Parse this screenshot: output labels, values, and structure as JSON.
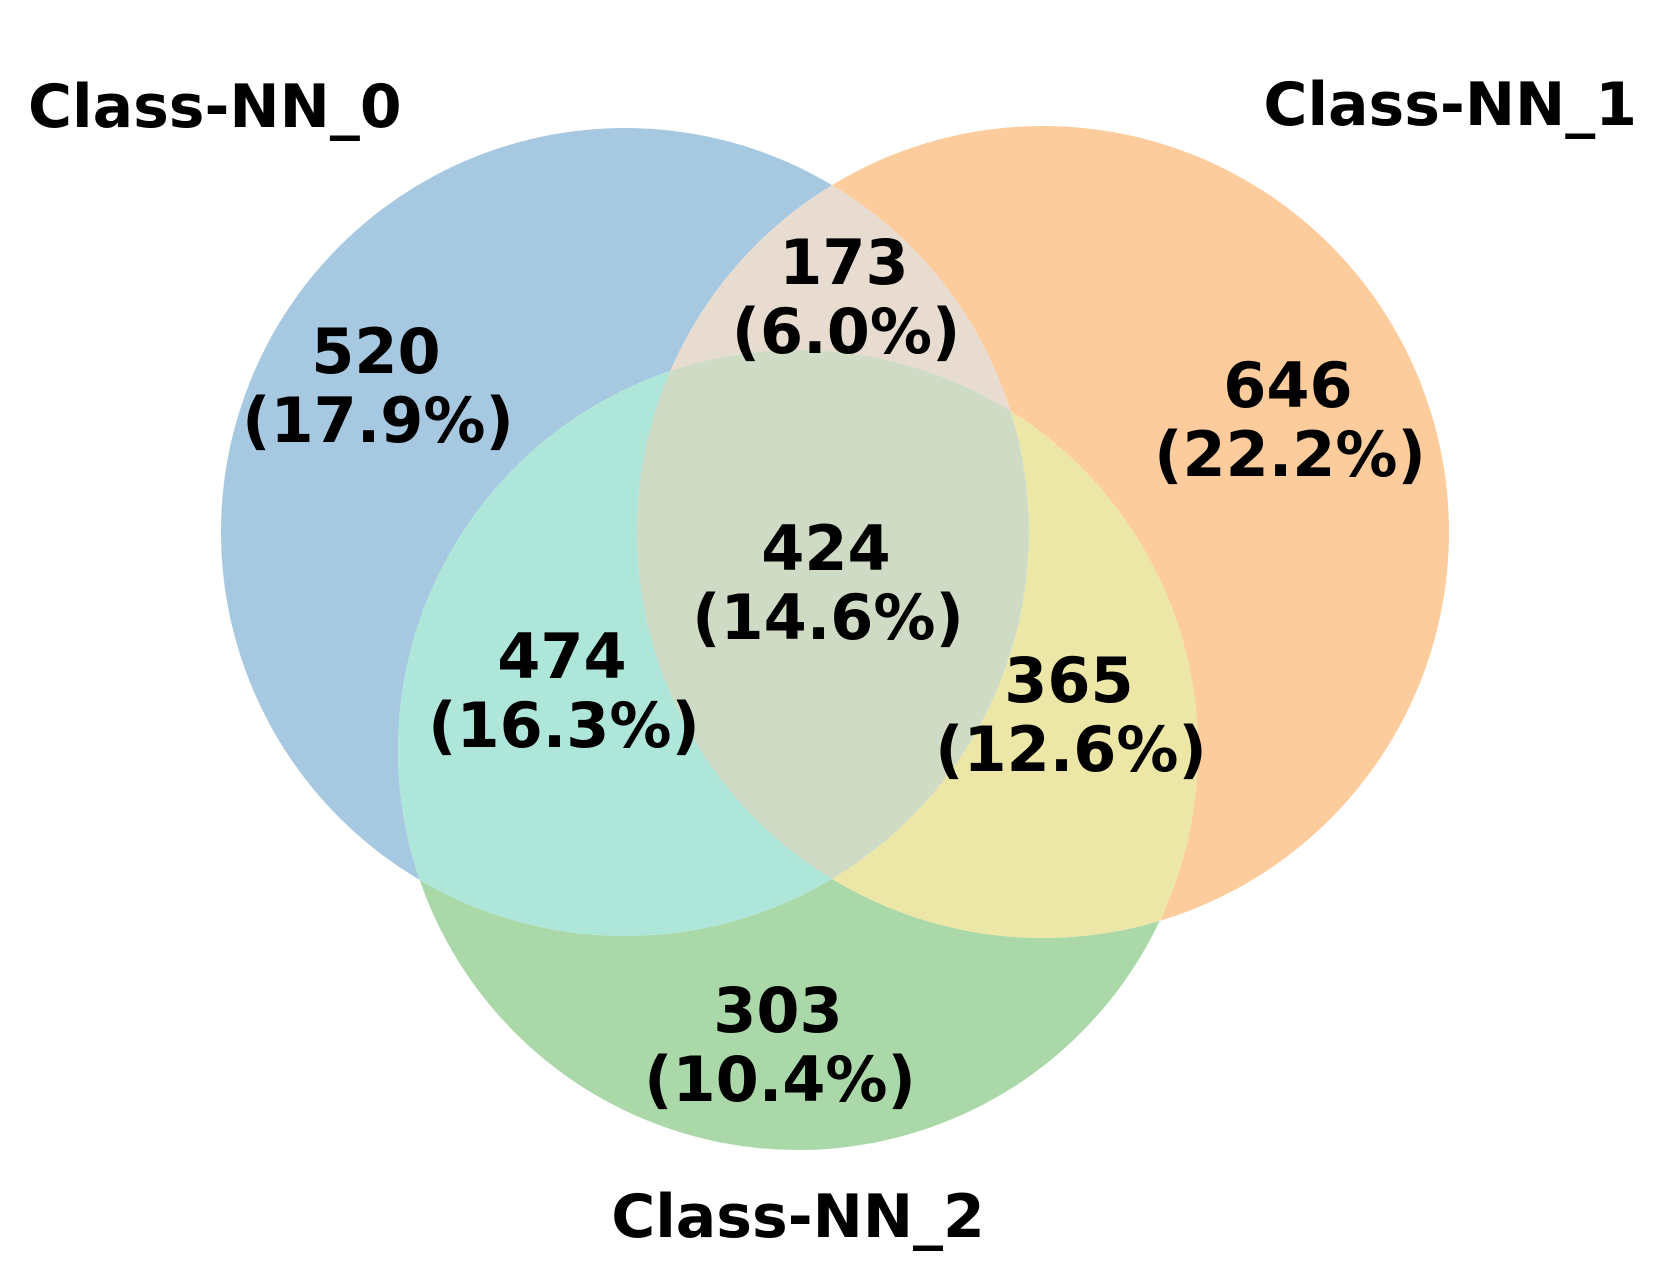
{
  "sets": [
    {
      "id": "A",
      "label": "Class-NN_0",
      "color": "#1f77b4"
    },
    {
      "id": "B",
      "label": "Class-NN_1",
      "color": "#ff7f0e"
    },
    {
      "id": "C",
      "label": "Class-NN_2",
      "color": "#2ca02c"
    }
  ],
  "regions": [
    {
      "id": "A_only",
      "count": "520",
      "percent": "(17.9%)",
      "color": "#a6c8e0"
    },
    {
      "id": "B_only",
      "count": "646",
      "percent": "(22.2%)",
      "color": "#fdcc9d"
    },
    {
      "id": "C_only",
      "count": "303",
      "percent": "(10.4%)",
      "color": "#aad8a9"
    },
    {
      "id": "AB",
      "count": "173",
      "percent": "(6.0%)",
      "color": "#e8dcd0"
    },
    {
      "id": "AC",
      "count": "474",
      "percent": "(16.3%)",
      "color": "#aee6da"
    },
    {
      "id": "BC",
      "count": "365",
      "percent": "(12.6%)",
      "color": "#ece7a7"
    },
    {
      "id": "ABC",
      "count": "424",
      "percent": "(14.6%)",
      "color": "#cfdbc4"
    }
  ]
}
